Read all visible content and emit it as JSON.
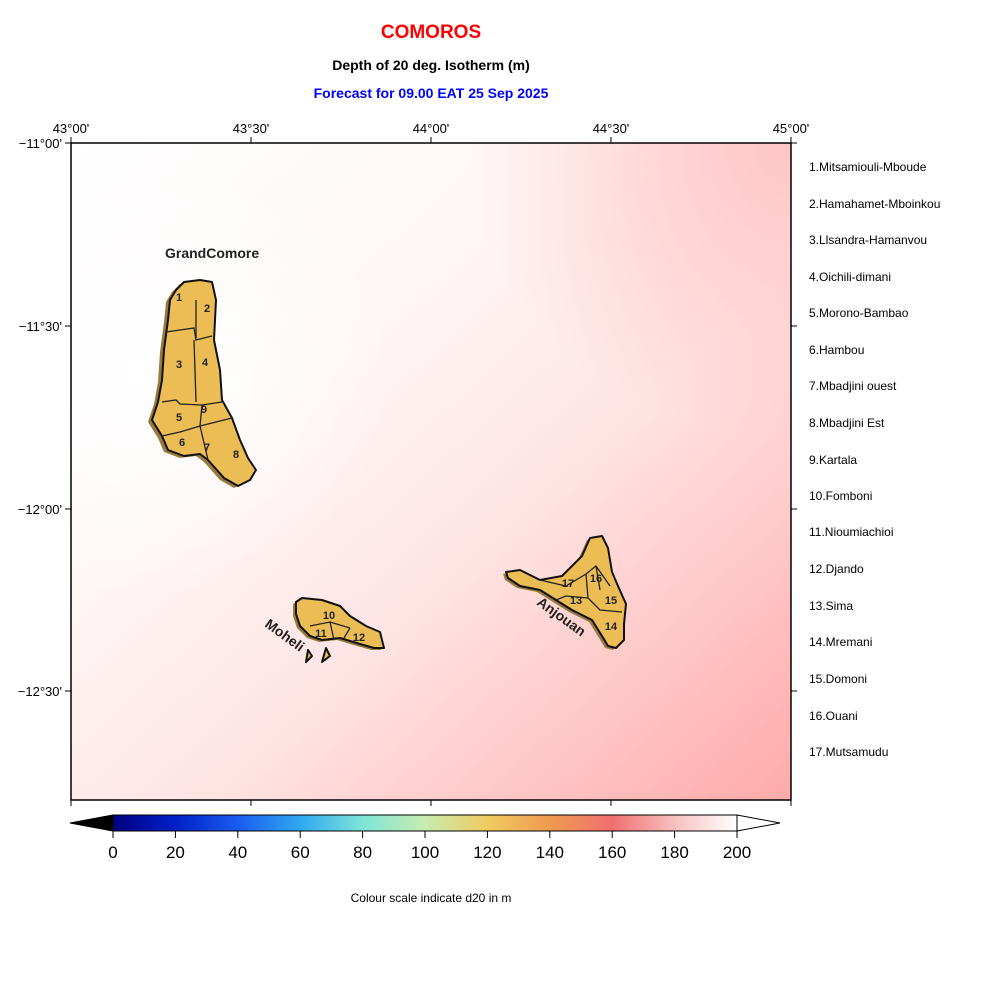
{
  "title": "COMOROS",
  "subtitle": "Depth of 20 deg. Isotherm (m)",
  "forecast": "Forecast for  09.00 EAT 25 Sep 2025",
  "colors": {
    "title": "#ff0000",
    "forecast": "#0000ff",
    "land": "#ebbd54"
  },
  "axes": {
    "lon_labels": [
      "43°00'",
      "43°30'",
      "44°00'",
      "44°30'",
      "45°00'"
    ],
    "lat_labels": [
      "−11°00'",
      "−11°30'",
      "−12°00'",
      "−12°30'"
    ]
  },
  "islands": [
    "GrandComore",
    "Moheli",
    "Anjouan"
  ],
  "region_numbers": [
    "1",
    "2",
    "3",
    "4",
    "5",
    "6",
    "7",
    "8",
    "9",
    "10",
    "11",
    "12",
    "13",
    "14",
    "15",
    "16",
    "17"
  ],
  "regions": [
    "1.Mitsamiouli-Mboude",
    "2.Hamahamet-Mboinkou",
    "3.Llsandra-Hamanvou",
    "4.Oichili-dimani",
    "5.Morono-Bambao",
    "6.Hambou",
    "7.Mbadjini ouest",
    "8.Mbadjini Est",
    "9.Kartala",
    "10.Fomboni",
    "11.Nioumiachioi",
    "12.Djando",
    "13.Sima",
    "14.Mremani",
    "15.Domoni",
    "16.Ouani",
    "17.Mutsamudu"
  ],
  "colorbar": {
    "ticks": [
      "0",
      "20",
      "40",
      "60",
      "80",
      "100",
      "120",
      "140",
      "160",
      "180",
      "200"
    ],
    "note": "Colour scale indicate d20 in m"
  }
}
